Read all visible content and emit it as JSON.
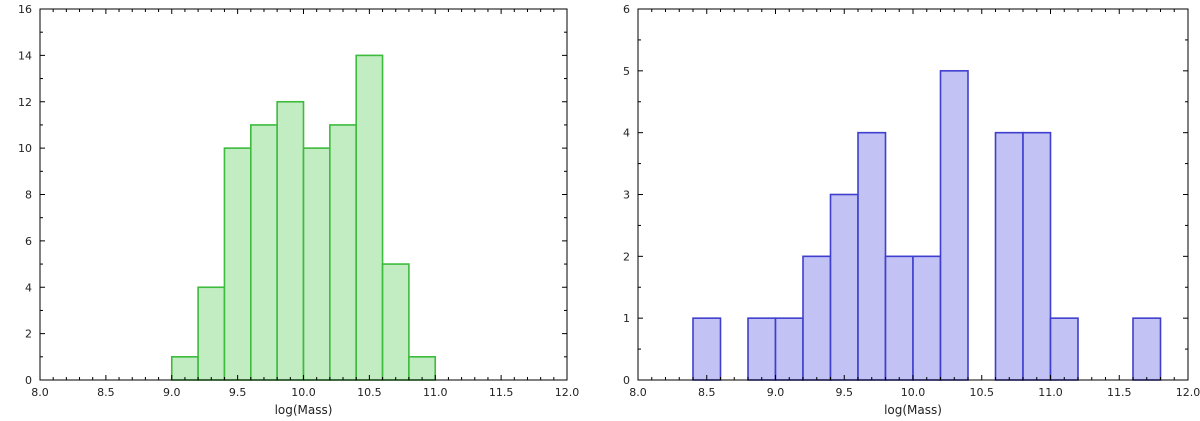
{
  "chart_data": [
    {
      "type": "bar",
      "xlabel": "log(Mass)",
      "ylabel": "",
      "xlim": [
        8.0,
        12.0
      ],
      "ylim": [
        0,
        16
      ],
      "xticks": [
        "8.0",
        "8.5",
        "9.0",
        "9.5",
        "10.0",
        "10.5",
        "11.0",
        "11.5",
        "12.0"
      ],
      "yticks": [
        "0",
        "2",
        "4",
        "6",
        "8",
        "10",
        "12",
        "14",
        "16"
      ],
      "bin_width": 0.2,
      "bin_starts": [
        9.0,
        9.2,
        9.4,
        9.6,
        9.8,
        10.0,
        10.2,
        10.4,
        10.6,
        10.8
      ],
      "values": [
        1,
        4,
        10,
        11,
        12,
        10,
        11,
        14,
        5,
        1
      ],
      "grid": false,
      "fill_color": "#c2ecc2",
      "edge_color": "#3dbb3d"
    },
    {
      "type": "bar",
      "xlabel": "log(Mass)",
      "ylabel": "",
      "xlim": [
        8.0,
        12.0
      ],
      "ylim": [
        0,
        6
      ],
      "xticks": [
        "8.0",
        "8.5",
        "9.0",
        "9.5",
        "10.0",
        "10.5",
        "11.0",
        "11.5",
        "12.0"
      ],
      "yticks": [
        "0",
        "1",
        "2",
        "3",
        "4",
        "5",
        "6"
      ],
      "bin_width": 0.2,
      "bin_starts": [
        8.4,
        8.8,
        9.0,
        9.2,
        9.4,
        9.6,
        9.8,
        10.0,
        10.2,
        10.6,
        10.8,
        11.0,
        11.6
      ],
      "values": [
        1,
        1,
        1,
        2,
        3,
        4,
        2,
        2,
        5,
        4,
        4,
        1,
        1
      ],
      "grid": false,
      "fill_color": "#c2c2f4",
      "edge_color": "#3f3fcf"
    }
  ]
}
